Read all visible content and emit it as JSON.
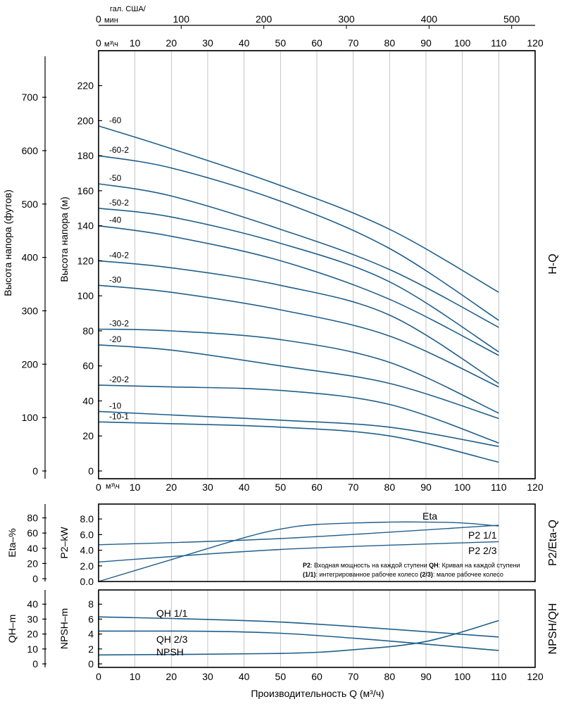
{
  "top_axis": {
    "usgpm_label_1": "гал. США/",
    "usgpm_label_2": "мин",
    "usgpm_zero": "0",
    "usgpm_ticks": [
      "100",
      "200",
      "300",
      "400",
      "500"
    ],
    "m3h_zero": "0",
    "m3h_unit": "м³\\ч",
    "m3h_ticks": [
      "10",
      "20",
      "30",
      "40",
      "50",
      "60",
      "70",
      "80",
      "90",
      "100",
      "110",
      "120"
    ]
  },
  "chart_data": [
    {
      "type": "line",
      "name_label": "H-Q",
      "xlabel": "",
      "x_unit_label": "м³\\ч",
      "ylabel": "Высота напора (м)",
      "ylabel_secondary": "Высота напора (футов)",
      "xlim": [
        0,
        120
      ],
      "ylim": [
        0,
        230
      ],
      "x_ticks": [
        "0",
        "10",
        "20",
        "30",
        "40",
        "50",
        "60",
        "70",
        "80",
        "90",
        "100",
        "110",
        "120"
      ],
      "y_ticks": [
        "0",
        "20",
        "40",
        "60",
        "80",
        "100",
        "120",
        "140",
        "160",
        "180",
        "200",
        "220"
      ],
      "y_ticks_secondary": [
        "0",
        "100",
        "200",
        "300",
        "400",
        "500",
        "600",
        "700"
      ],
      "grid": true,
      "series": [
        {
          "name": "-60",
          "x": [
            0,
            20,
            50,
            80,
            110
          ],
          "y": [
            197,
            184,
            163,
            138,
            102
          ]
        },
        {
          "name": "-60-2",
          "x": [
            0,
            20,
            50,
            80,
            110
          ],
          "y": [
            180,
            173,
            154,
            127,
            86
          ]
        },
        {
          "name": "-50",
          "x": [
            0,
            20,
            50,
            80,
            110
          ],
          "y": [
            164,
            157,
            138,
            115,
            82
          ]
        },
        {
          "name": "-50-2",
          "x": [
            0,
            20,
            50,
            80,
            110
          ],
          "y": [
            150,
            145,
            130,
            108,
            68
          ]
        },
        {
          "name": "-40",
          "x": [
            0,
            20,
            50,
            80,
            110
          ],
          "y": [
            140,
            134,
            120,
            98,
            66
          ]
        },
        {
          "name": "-40-2",
          "x": [
            0,
            20,
            50,
            80,
            110
          ],
          "y": [
            120,
            116,
            106,
            89,
            50
          ]
        },
        {
          "name": "-30",
          "x": [
            0,
            20,
            50,
            80,
            110
          ],
          "y": [
            106,
            102,
            92,
            77,
            48
          ]
        },
        {
          "name": "-30-2",
          "x": [
            0,
            20,
            50,
            80,
            110
          ],
          "y": [
            81,
            80,
            75,
            62,
            33
          ]
        },
        {
          "name": "-20",
          "x": [
            0,
            20,
            50,
            80,
            110
          ],
          "y": [
            72,
            69,
            60,
            50,
            30
          ]
        },
        {
          "name": "-20-2",
          "x": [
            0,
            20,
            50,
            80,
            110
          ],
          "y": [
            49,
            48,
            46,
            38,
            16
          ]
        },
        {
          "name": "-10",
          "x": [
            0,
            20,
            50,
            80,
            110
          ],
          "y": [
            34,
            32,
            29,
            25,
            14
          ]
        },
        {
          "name": "-10-1",
          "x": [
            0,
            20,
            50,
            80,
            110
          ],
          "y": [
            28,
            27,
            25,
            20,
            5
          ]
        }
      ]
    },
    {
      "type": "line",
      "name_label": "P2/Eta-Q",
      "ylabel": "P2–kW",
      "ylabel_secondary": "Eta–%",
      "xlim": [
        0,
        120
      ],
      "ylim": [
        0,
        9
      ],
      "y_ticks": [
        "0.0",
        "2.0",
        "4.0",
        "6.0",
        "8.0"
      ],
      "y_ticks_secondary": [
        "0",
        "20",
        "40",
        "60",
        "80"
      ],
      "grid": true,
      "series": [
        {
          "name": "Eta",
          "x": [
            0,
            20,
            40,
            50,
            60,
            80,
            90,
            100,
            110
          ],
          "y": [
            0,
            2.8,
            5.6,
            6.7,
            7.3,
            7.6,
            7.6,
            7.5,
            7.1
          ]
        },
        {
          "name": "P2 1/1",
          "x": [
            0,
            50,
            110
          ],
          "y": [
            4.7,
            5.5,
            7.2
          ]
        },
        {
          "name": "P2 2/3",
          "x": [
            0,
            50,
            110
          ],
          "y": [
            2.5,
            4.1,
            5.1
          ]
        }
      ],
      "note": {
        "p2_term": "P2",
        "p2_text": ": Входная мощность на каждой ступени ",
        "qh_term": "QH",
        "qh_text": ": Кривая на каждой ступени",
        "t11_term": "(1/1)",
        "t11_text": ": интегрированное рабочее колесо ",
        "t23_term": "(2/3)",
        "t23_text": ": малое рабочее колесо"
      }
    },
    {
      "type": "line",
      "name_label": "NPSH/QH",
      "ylabel": "NPSH–m",
      "ylabel_secondary": "QH–m",
      "xlabel": "Производительность Q (м³/ч)",
      "xlim": [
        0,
        120
      ],
      "ylim": [
        0,
        10
      ],
      "x_ticks": [
        "0",
        "10",
        "20",
        "30",
        "40",
        "50",
        "60",
        "70",
        "80",
        "90",
        "100",
        "110",
        "120"
      ],
      "y_ticks": [
        "0",
        "2",
        "4",
        "6",
        "8"
      ],
      "y_ticks_secondary": [
        "0",
        "10",
        "20",
        "30",
        "40"
      ],
      "grid": true,
      "series": [
        {
          "name": "QH 1/1",
          "x": [
            0,
            50,
            110
          ],
          "y": [
            6.3,
            5.6,
            3.6
          ]
        },
        {
          "name": "QH 2/3",
          "x": [
            0,
            50,
            110
          ],
          "y": [
            4.4,
            4.1,
            1.8
          ]
        },
        {
          "name": "NPSH",
          "x": [
            0,
            50,
            70,
            90,
            110
          ],
          "y": [
            1.2,
            1.4,
            1.9,
            3.0,
            5.8
          ]
        }
      ]
    }
  ]
}
